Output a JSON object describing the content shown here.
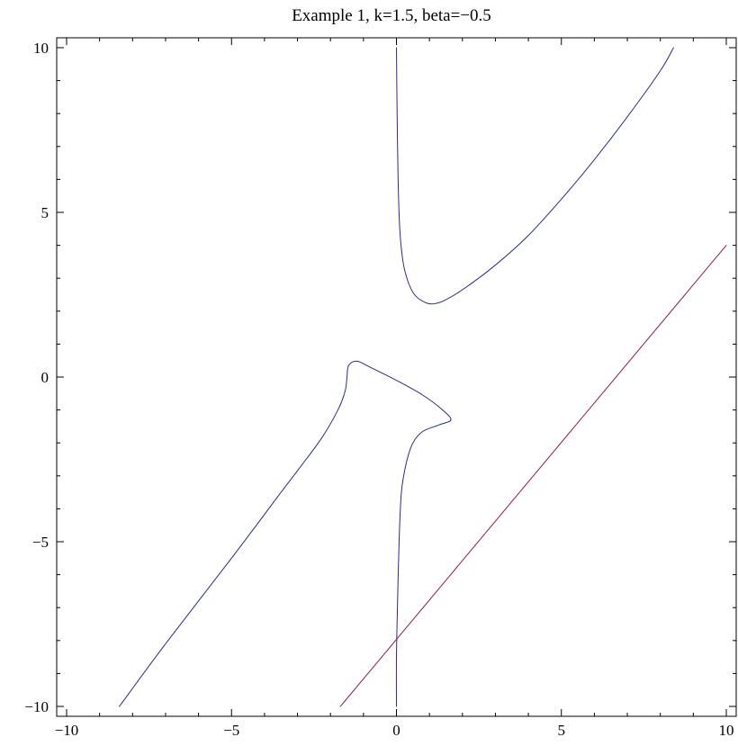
{
  "chart_data": {
    "type": "line",
    "title": "Example 1, k=1.5, beta=−0.5",
    "xlabel": "",
    "ylabel": "",
    "xlim": [
      -10.3,
      10.3
    ],
    "ylim": [
      -10.3,
      10.3
    ],
    "grid": false,
    "x_ticks": [
      -10,
      -5,
      0,
      5,
      10
    ],
    "x_tick_labels": [
      "−10",
      "−5",
      "0",
      "5",
      "10"
    ],
    "y_ticks": [
      -10,
      -5,
      0,
      5,
      10
    ],
    "y_tick_labels": [
      "−10",
      "−5",
      "0",
      "5",
      "10"
    ],
    "series": [
      {
        "color": "#2b2b8f",
        "segments": [
          [
            [
              0.0,
              10.0
            ],
            [
              0.02,
              8.0
            ],
            [
              0.05,
              6.0
            ],
            [
              0.1,
              4.5
            ],
            [
              0.2,
              3.5
            ],
            [
              0.35,
              2.9
            ],
            [
              0.55,
              2.5
            ],
            [
              0.8,
              2.3
            ],
            [
              1.05,
              2.22
            ],
            [
              1.4,
              2.3
            ],
            [
              2.0,
              2.65
            ],
            [
              3.0,
              3.4
            ],
            [
              4.0,
              4.3
            ],
            [
              5.0,
              5.4
            ],
            [
              6.0,
              6.6
            ],
            [
              7.0,
              7.9
            ],
            [
              8.0,
              9.3
            ],
            [
              8.4,
              10.0
            ]
          ],
          [
            [
              -8.4,
              -10.0
            ],
            [
              -7.0,
              -8.1
            ],
            [
              -5.0,
              -5.5
            ],
            [
              -3.5,
              -3.5
            ],
            [
              -2.3,
              -1.9
            ],
            [
              -1.75,
              -0.95
            ],
            [
              -1.55,
              -0.4
            ],
            [
              -1.5,
              0.0
            ],
            [
              -1.45,
              0.35
            ],
            [
              -1.2,
              0.48
            ],
            [
              -0.8,
              0.3
            ],
            [
              0.0,
              -0.1
            ],
            [
              0.8,
              -0.55
            ],
            [
              1.4,
              -1.0
            ],
            [
              1.65,
              -1.3
            ],
            [
              1.3,
              -1.45
            ],
            [
              0.8,
              -1.65
            ],
            [
              0.5,
              -2.0
            ],
            [
              0.3,
              -2.6
            ],
            [
              0.15,
              -3.5
            ],
            [
              0.08,
              -5.0
            ],
            [
              0.03,
              -7.0
            ],
            [
              0.0,
              -8.5
            ],
            [
              0.0,
              -10.0
            ]
          ]
        ]
      },
      {
        "color": "#8b1a4a",
        "segments": [
          [
            [
              -1.7,
              -10.0
            ],
            [
              10.0,
              4.0
            ]
          ]
        ]
      }
    ]
  }
}
